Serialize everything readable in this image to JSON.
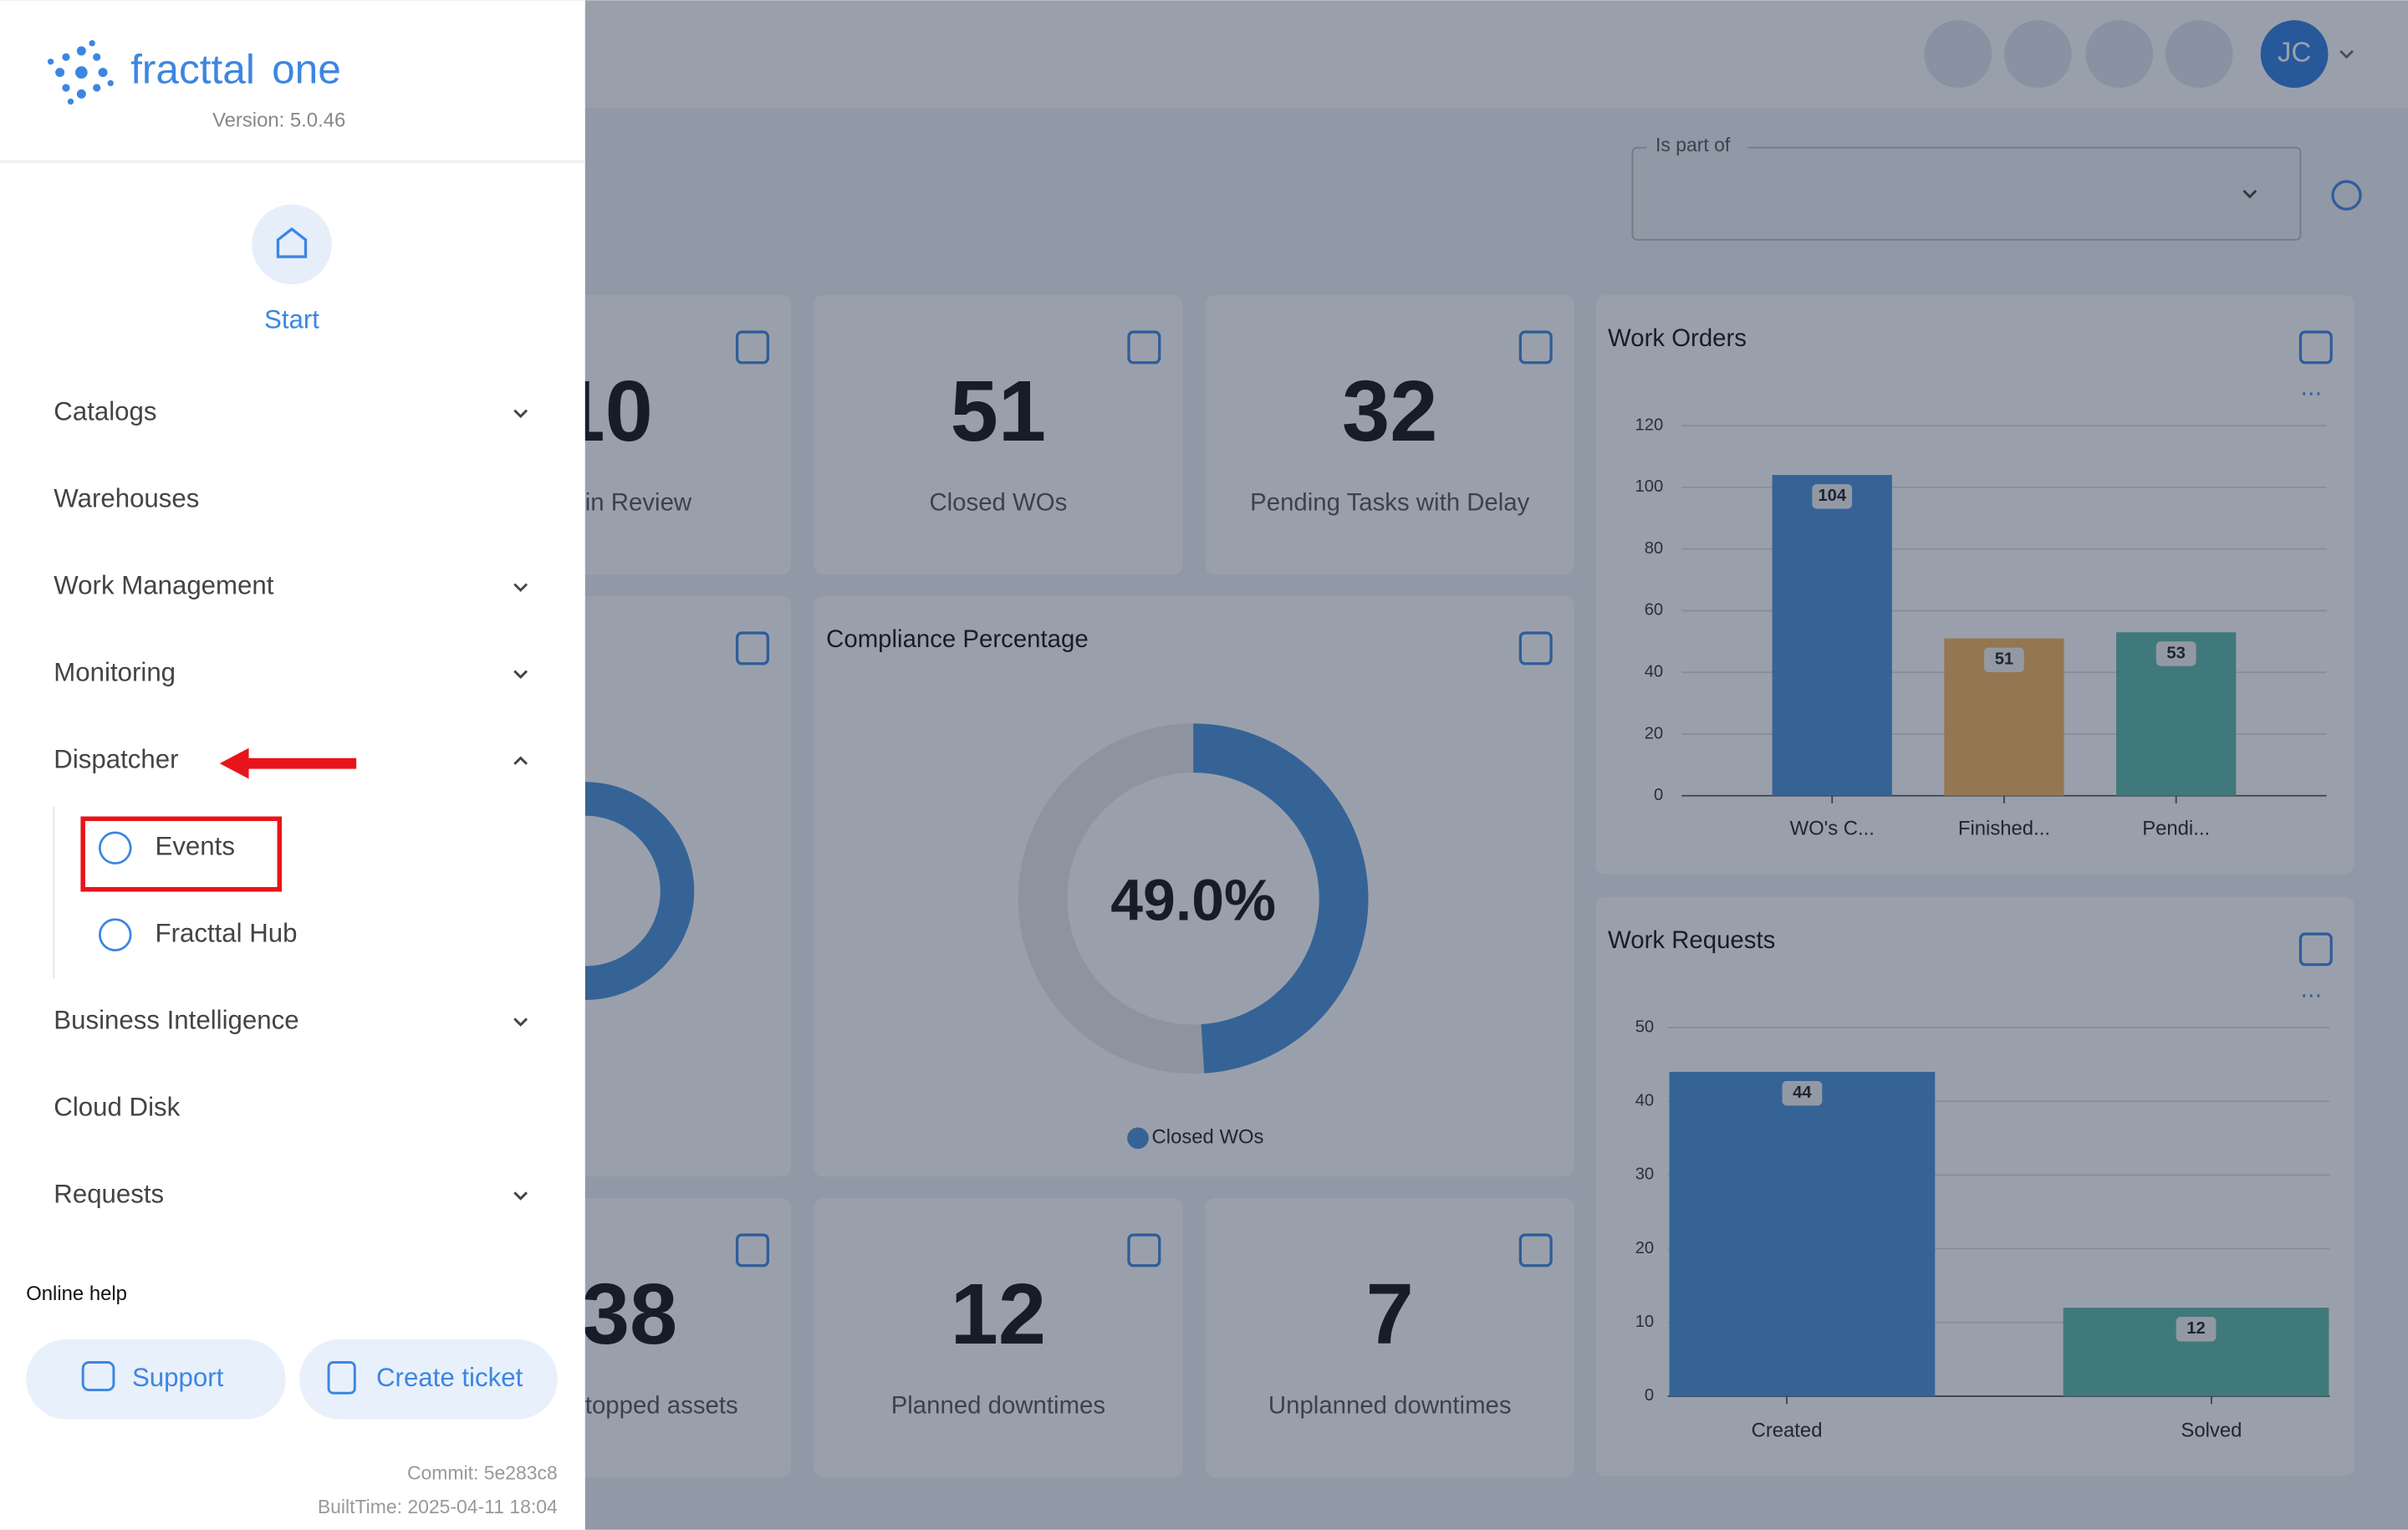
{
  "sidebar": {
    "brand": "fracttal",
    "brand_suffix": "one",
    "version": "Version: 5.0.46",
    "start": "Start",
    "menu": [
      {
        "label": "Catalogs",
        "chevron": "down"
      },
      {
        "label": "Warehouses"
      },
      {
        "label": "Work Management",
        "chevron": "down"
      },
      {
        "label": "Monitoring",
        "chevron": "down"
      },
      {
        "label": "Dispatcher",
        "chevron": "up",
        "children": [
          {
            "label": "Events"
          },
          {
            "label": "Fracttal Hub"
          }
        ]
      },
      {
        "label": "Business Intelligence",
        "chevron": "down"
      },
      {
        "label": "Cloud Disk"
      },
      {
        "label": "Requests",
        "chevron": "down"
      }
    ],
    "online_help": "Online help",
    "buttons": [
      "Support",
      "Create ticket"
    ],
    "commit": "Commit: 5e283c8",
    "built_time": "BuiltTime: 2025-04-11 18:04"
  },
  "topbar": {
    "avatar": "JC"
  },
  "filter": {
    "label": "Is part of"
  },
  "kpi_cards": [
    {
      "value": 10,
      "label": "in Review"
    },
    {
      "value": 51,
      "label": "Closed WOs"
    },
    {
      "value": 32,
      "label": "Pending Tasks with Delay"
    },
    {
      "value": 38,
      "label": "topped assets"
    },
    {
      "value": 12,
      "label": "Planned downtimes"
    },
    {
      "value": 7,
      "label": "Unplanned downtimes"
    }
  ],
  "compliance": {
    "title": "Compliance Percentage",
    "value": 49.0,
    "value_label": "49.0%",
    "legend": "Closed WOs",
    "color": "#4a90d9"
  },
  "work_orders": {
    "type": "bar",
    "title": "Work Orders",
    "categories": [
      "WO's C...",
      "Finished...",
      "Pendi..."
    ],
    "values": [
      104,
      51,
      53
    ],
    "colors": [
      "#4a90d9",
      "#f5b55a",
      "#5cb8a8"
    ],
    "ylim": [
      0,
      120
    ],
    "yticks": [
      0,
      20,
      40,
      60,
      80,
      100,
      120
    ],
    "grid": true
  },
  "work_requests": {
    "type": "bar",
    "title": "Work Requests",
    "categories": [
      "Created",
      "Solved"
    ],
    "values": [
      44,
      12
    ],
    "colors": [
      "#4a90d9",
      "#5cb8a8"
    ],
    "ylim": [
      0,
      50
    ],
    "yticks": [
      0,
      10,
      20,
      30,
      40,
      50
    ],
    "grid": true
  }
}
